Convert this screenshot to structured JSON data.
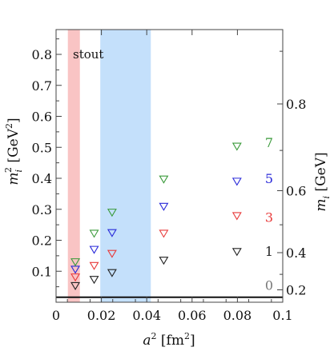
{
  "chart_data": {
    "type": "scatter",
    "title": "",
    "annotation": "stout",
    "xlabel": "a² [fm²]",
    "ylabel": "m_i² [GeV²]",
    "ylabel_right": "m_i [GeV]",
    "xlim": [
      0,
      0.1
    ],
    "ylim": [
      0,
      0.88
    ],
    "x_ticks": [
      0,
      0.02,
      0.04,
      0.06,
      0.08,
      0.1
    ],
    "x_tick_labels": [
      "0",
      "0.02",
      "0.04",
      "0.06",
      "0.08",
      "0.1"
    ],
    "y_ticks": [
      0.1,
      0.2,
      0.3,
      0.4,
      0.5,
      0.6,
      0.7,
      0.8
    ],
    "y_tick_labels": [
      "0.1",
      "0.2",
      "0.3",
      "0.4",
      "0.5",
      "0.6",
      "0.7",
      "0.8"
    ],
    "right_ticks": [
      0.2,
      0.4,
      0.6,
      0.8
    ],
    "right_tick_labels": [
      "0.2",
      "0.4",
      "0.6",
      "0.8"
    ],
    "horizontal_line": 0.016,
    "bands": [
      {
        "x0": 0.0052,
        "x1": 0.0105,
        "color": "#f9c4c4"
      },
      {
        "x0": 0.0195,
        "x1": 0.0418,
        "color": "#c4e0fb"
      }
    ],
    "series": [
      {
        "label": "0",
        "color": "#777777",
        "x": [],
        "y": []
      },
      {
        "label": "1",
        "color": "#222222",
        "x": [
          0.0085,
          0.0168,
          0.0247,
          0.0475,
          0.0798
        ],
        "y": [
          0.053,
          0.073,
          0.095,
          0.135,
          0.163
        ]
      },
      {
        "label": "3",
        "color": "#e83a3a",
        "x": [
          0.0085,
          0.0168,
          0.0247,
          0.0475,
          0.0798
        ],
        "y": [
          0.081,
          0.118,
          0.157,
          0.222,
          0.279
        ]
      },
      {
        "label": "5",
        "color": "#2a2ad9",
        "x": [
          0.0085,
          0.0168,
          0.0247,
          0.0475,
          0.0798
        ],
        "y": [
          0.106,
          0.17,
          0.224,
          0.309,
          0.39
        ]
      },
      {
        "label": "7",
        "color": "#3a9a3a",
        "x": [
          0.0085,
          0.0168,
          0.0247,
          0.0475,
          0.0798
        ],
        "y": [
          0.13,
          0.222,
          0.29,
          0.397,
          0.503
        ]
      }
    ],
    "series_label_y": [
      0.055,
      0.165,
      0.275,
      0.4,
      0.516
    ],
    "grid": false,
    "legend": "right side, labels next to series"
  }
}
